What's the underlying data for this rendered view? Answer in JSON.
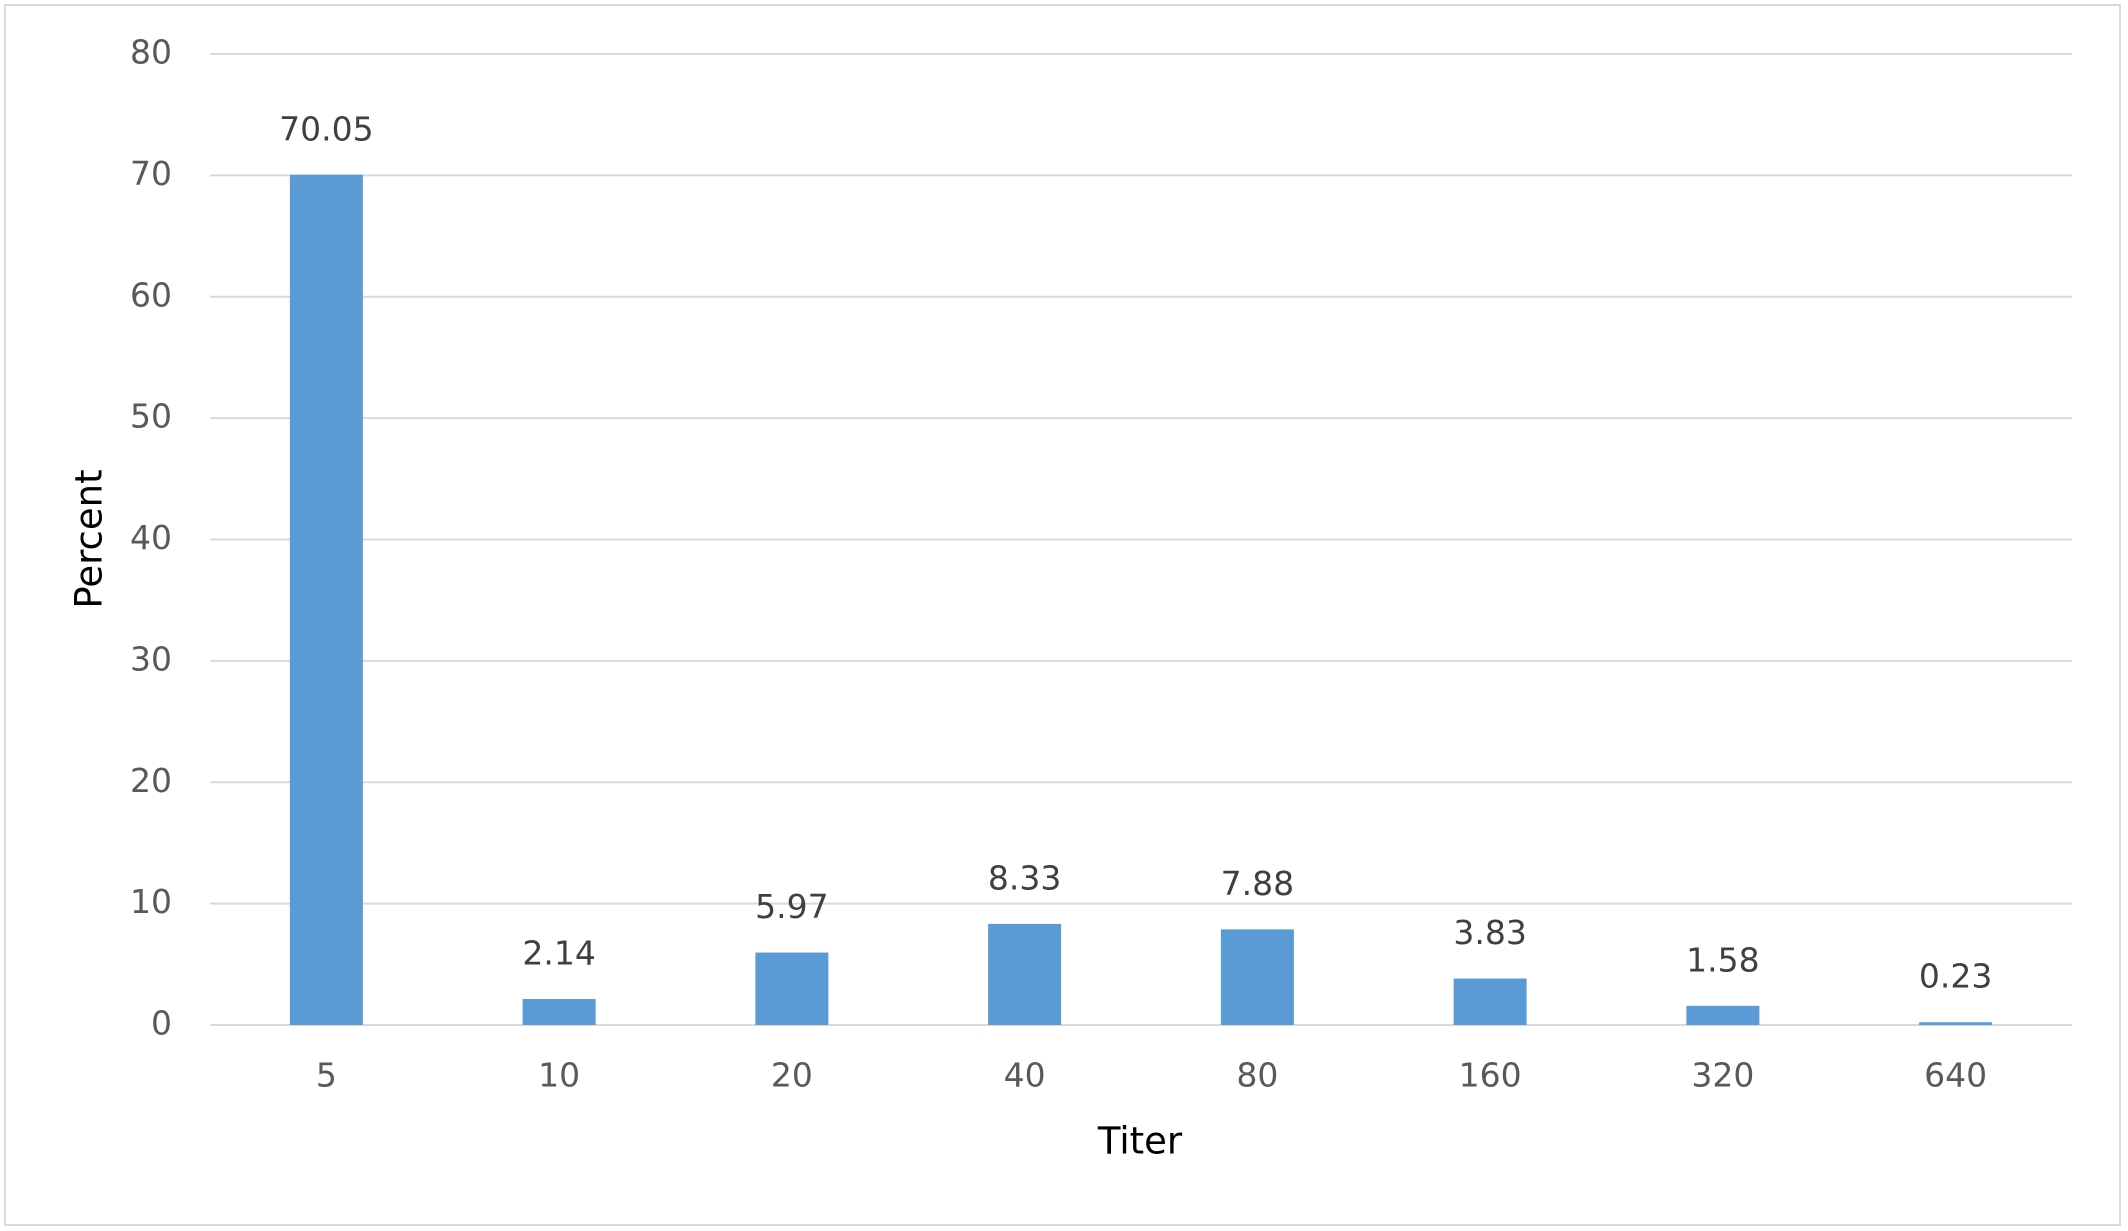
{
  "chart_data": {
    "type": "bar",
    "x_label": "Titer",
    "y_label": "Percent",
    "categories": [
      "5",
      "10",
      "20",
      "40",
      "80",
      "160",
      "320",
      "640"
    ],
    "values": [
      70.05,
      2.14,
      5.97,
      8.33,
      7.88,
      3.83,
      1.58,
      0.23
    ],
    "color": "#5b9bd5",
    "ylim": [
      0,
      80
    ],
    "yticks": [
      0,
      10,
      20,
      30,
      40,
      50,
      60,
      70,
      80
    ],
    "grid": true
  }
}
